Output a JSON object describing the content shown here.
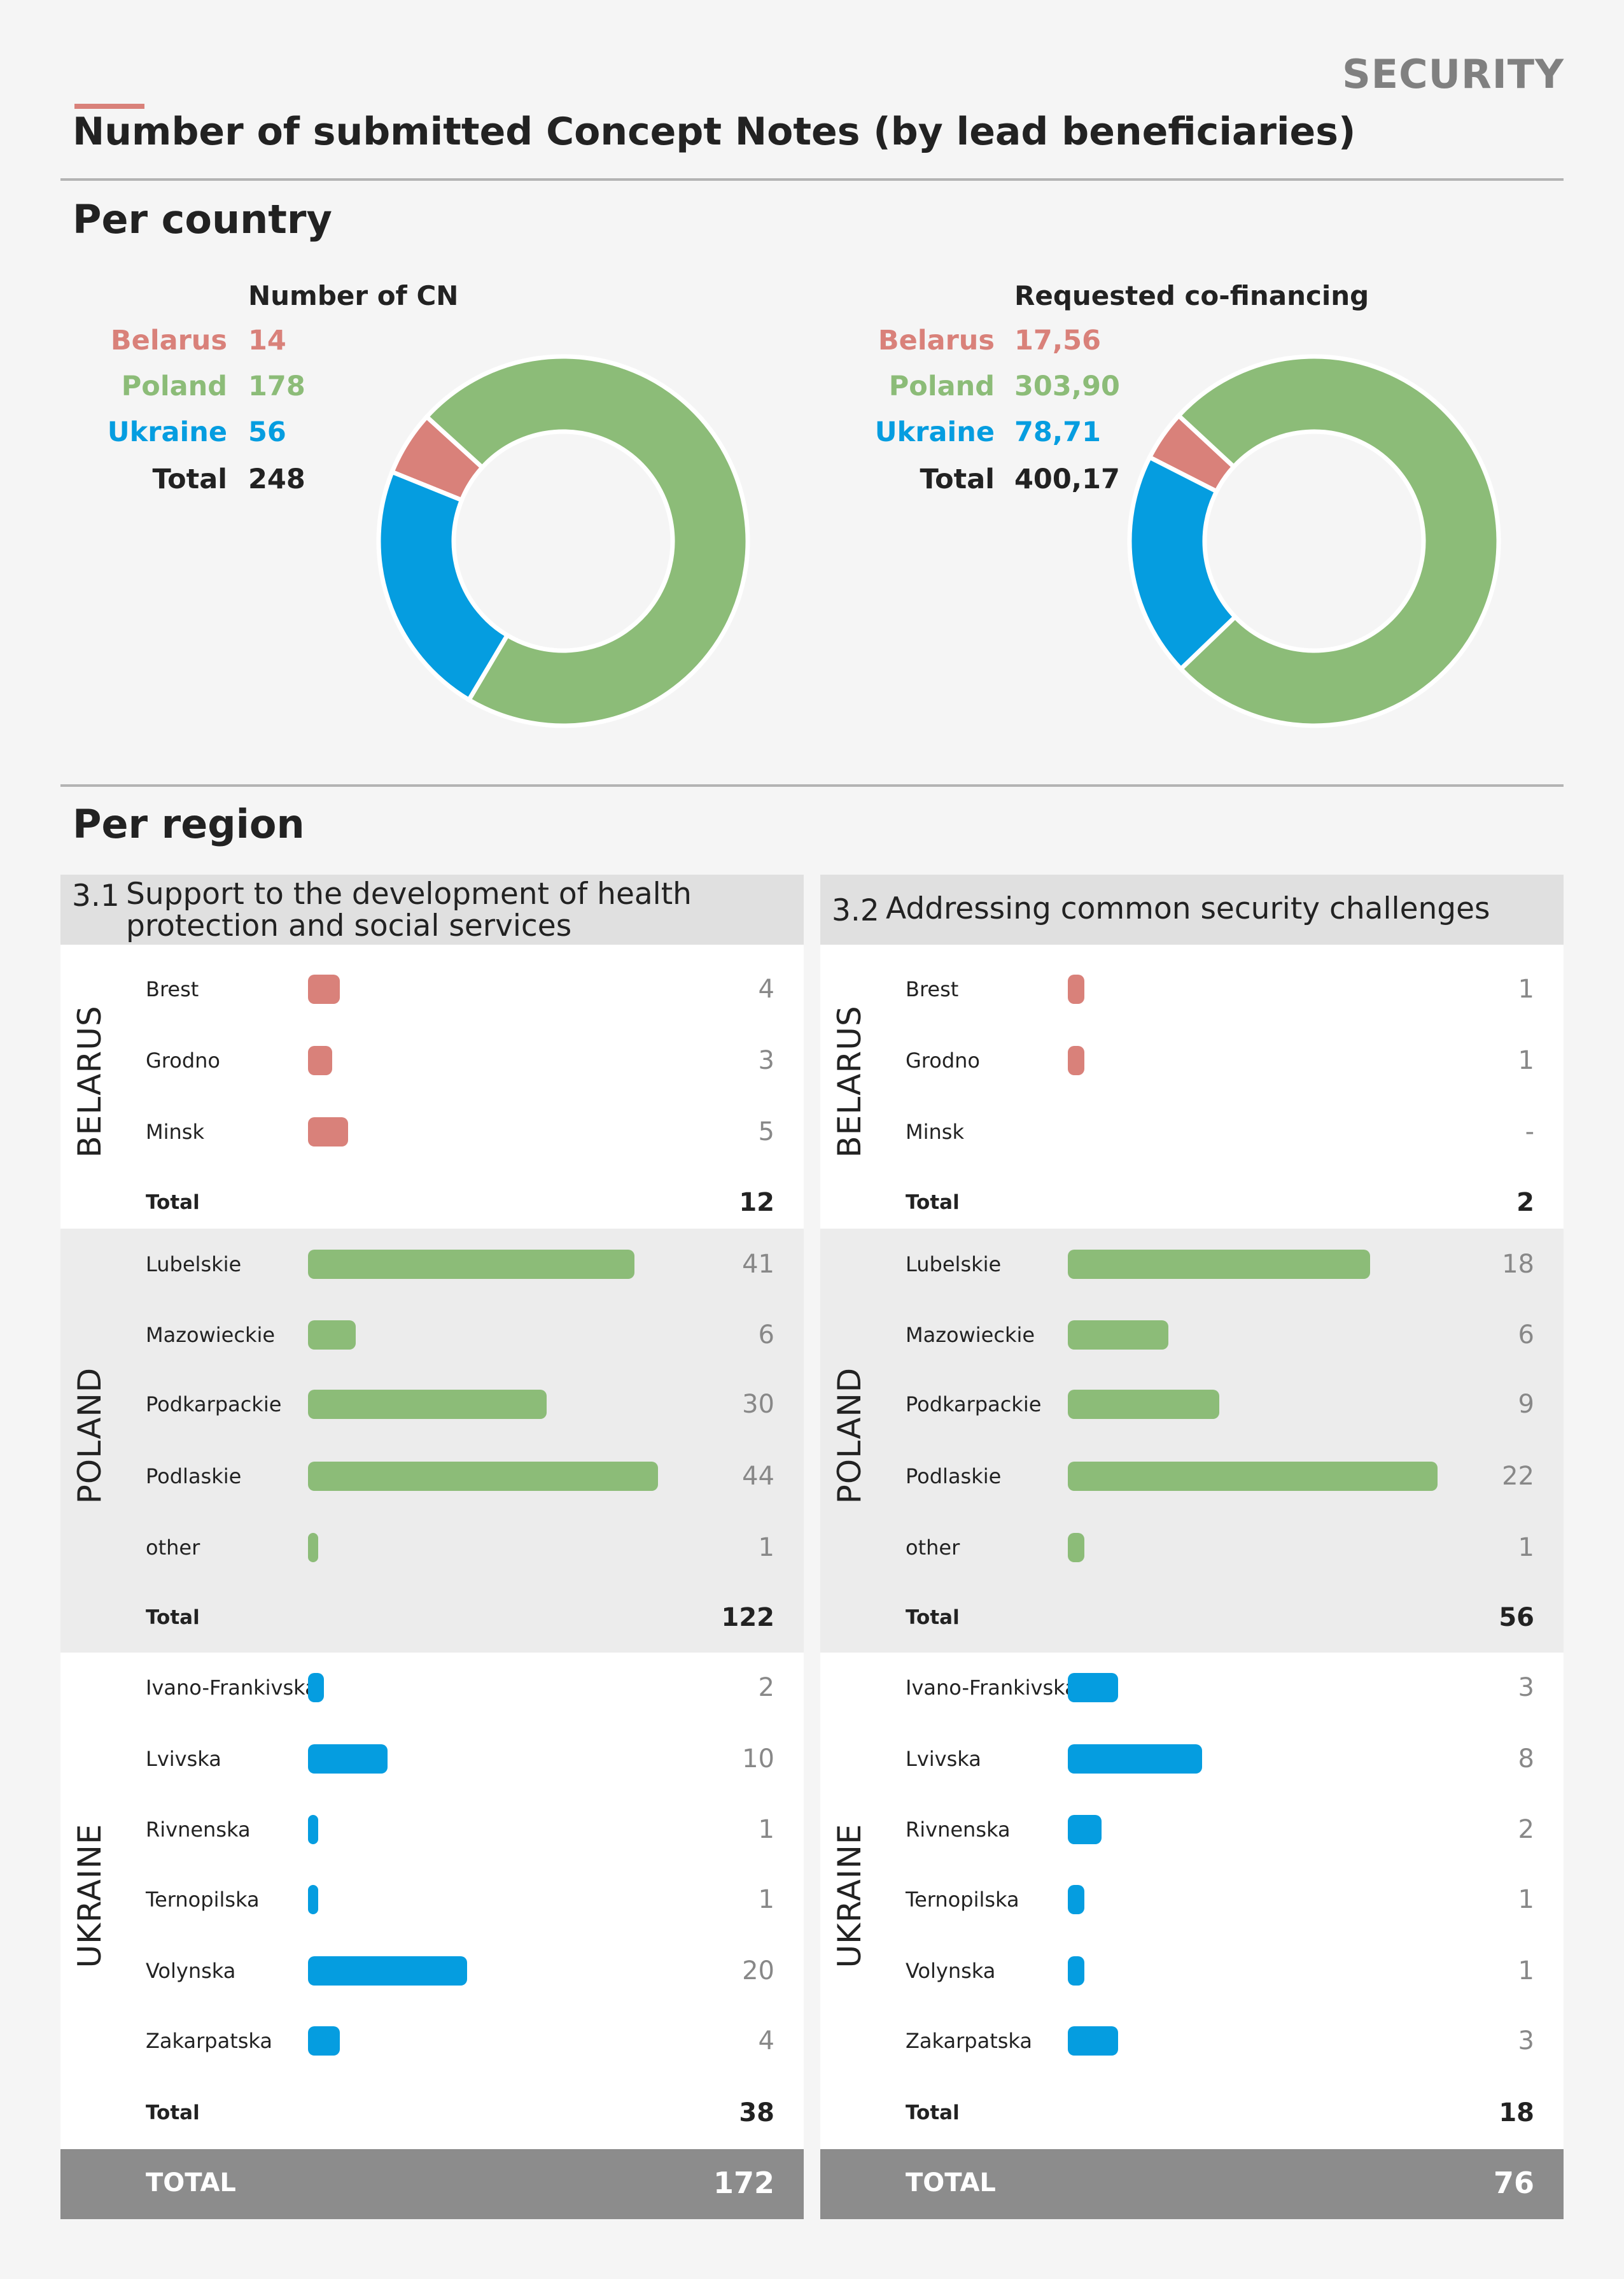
{
  "header": {
    "section_tag": "SECURITY",
    "title": "Number of submitted Concept Notes (by lead beneficiaries)",
    "per_country": "Per country",
    "per_region": "Per region"
  },
  "colors": {
    "belarus": "#d9817a",
    "poland": "#8cbc78",
    "ukraine": "#059de0",
    "accent": "#d9817a"
  },
  "country_charts": [
    {
      "heading": "Number of CN",
      "legend": [
        {
          "name": "Belarus",
          "value": "14"
        },
        {
          "name": "Poland",
          "value": "178"
        },
        {
          "name": "Ukraine",
          "value": "56"
        },
        {
          "name": "Total",
          "value": "248"
        }
      ]
    },
    {
      "heading": "Requested co-financing",
      "legend": [
        {
          "name": "Belarus",
          "value": "17,56"
        },
        {
          "name": "Poland",
          "value": "303,90"
        },
        {
          "name": "Ukraine",
          "value": "78,71"
        },
        {
          "name": "Total",
          "value": "400,17"
        }
      ]
    }
  ],
  "panels": [
    {
      "number": "3.1",
      "title_line1": "Support to the development of health",
      "title_line2": "protection and social services",
      "countries": [
        {
          "label": "BELARUS",
          "total_label": "Total",
          "total": "12"
        },
        {
          "label": "POLAND",
          "total_label": "Total",
          "total": "122"
        },
        {
          "label": "UKRAINE",
          "total_label": "Total",
          "total": "38"
        }
      ],
      "grand_label": "TOTAL",
      "grand_total": "172"
    },
    {
      "number": "3.2",
      "title_line1": "Addressing common security challenges",
      "title_line2": "",
      "countries": [
        {
          "label": "BELARUS",
          "total_label": "Total",
          "total": "2"
        },
        {
          "label": "POLAND",
          "total_label": "Total",
          "total": "56"
        },
        {
          "label": "UKRAINE",
          "total_label": "Total",
          "total": "18"
        }
      ],
      "grand_label": "TOTAL",
      "grand_total": "76"
    }
  ],
  "chart_data": [
    {
      "type": "pie",
      "title": "Number of CN",
      "categories": [
        "Belarus",
        "Poland",
        "Ukraine"
      ],
      "values": [
        14,
        178,
        56
      ],
      "total": 248
    },
    {
      "type": "pie",
      "title": "Requested co-financing",
      "categories": [
        "Belarus",
        "Poland",
        "Ukraine"
      ],
      "values": [
        17.56,
        303.9,
        78.71
      ],
      "total": 400.17
    },
    {
      "type": "bar",
      "title": "3.1 Support to the development of health protection and social services",
      "categories": [
        "Brest",
        "Grodno",
        "Minsk",
        "Lubelskie",
        "Mazowieckie",
        "Podkarpackie",
        "Podlaskie",
        "other",
        "Ivano-Frankivska",
        "Lvivska",
        "Rivnenska",
        "Ternopilska",
        "Volynska",
        "Zakarpatska"
      ],
      "country": [
        "Belarus",
        "Belarus",
        "Belarus",
        "Poland",
        "Poland",
        "Poland",
        "Poland",
        "Poland",
        "Ukraine",
        "Ukraine",
        "Ukraine",
        "Ukraine",
        "Ukraine",
        "Ukraine"
      ],
      "values": [
        4,
        3,
        5,
        41,
        6,
        30,
        44,
        1,
        2,
        10,
        1,
        1,
        20,
        4
      ],
      "labels": [
        "4",
        "3",
        "5",
        "41",
        "6",
        "30",
        "44",
        "1",
        "2",
        "10",
        "1",
        "1",
        "20",
        "4"
      ]
    },
    {
      "type": "bar",
      "title": "3.2 Addressing common security challenges",
      "categories": [
        "Brest",
        "Grodno",
        "Minsk",
        "Lubelskie",
        "Mazowieckie",
        "Podkarpackie",
        "Podlaskie",
        "other",
        "Ivano-Frankivska",
        "Lvivska",
        "Rivnenska",
        "Ternopilska",
        "Volynska",
        "Zakarpatska"
      ],
      "country": [
        "Belarus",
        "Belarus",
        "Belarus",
        "Poland",
        "Poland",
        "Poland",
        "Poland",
        "Poland",
        "Ukraine",
        "Ukraine",
        "Ukraine",
        "Ukraine",
        "Ukraine",
        "Ukraine"
      ],
      "values": [
        1,
        1,
        0,
        18,
        6,
        9,
        22,
        1,
        3,
        8,
        2,
        1,
        1,
        3
      ],
      "labels": [
        "1",
        "1",
        "-",
        "18",
        "6",
        "9",
        "22",
        "1",
        "3",
        "8",
        "2",
        "1",
        "1",
        "3"
      ]
    }
  ]
}
